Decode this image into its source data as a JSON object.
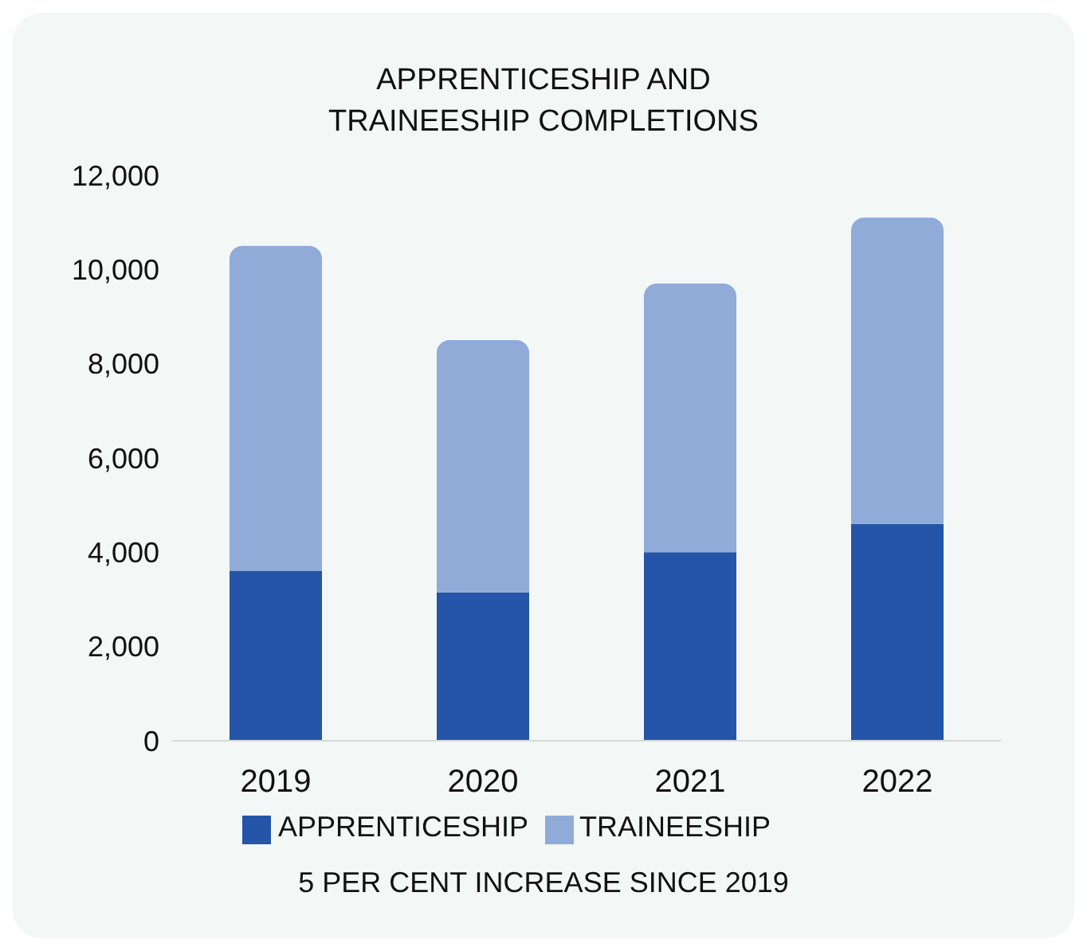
{
  "chart_data": {
    "type": "bar",
    "title": "APPRENTICESHIP AND\nTRAINEESHIP COMPLETIONS",
    "categories": [
      "2019",
      "2020",
      "2021",
      "2022"
    ],
    "stacked": true,
    "series": [
      {
        "name": "APPRENTICESHIP",
        "color": "#2455a8",
        "values": [
          3600,
          3150,
          4000,
          4600
        ]
      },
      {
        "name": "TRAINEESHIP",
        "color": "#90abd8",
        "values": [
          6900,
          5350,
          5700,
          6500
        ]
      }
    ],
    "ylim": [
      0,
      12000
    ],
    "yticks": [
      {
        "value": 0,
        "label": "0"
      },
      {
        "value": 2000,
        "label": "2,000"
      },
      {
        "value": 4000,
        "label": "4,000"
      },
      {
        "value": 6000,
        "label": "6,000"
      },
      {
        "value": 8000,
        "label": "8,000"
      },
      {
        "value": 10000,
        "label": "10,000"
      },
      {
        "value": 12000,
        "label": "12,000"
      }
    ],
    "grid": false,
    "legend": "bottom",
    "annotations": [
      "5 PER CENT INCREASE SINCE 2019"
    ]
  }
}
